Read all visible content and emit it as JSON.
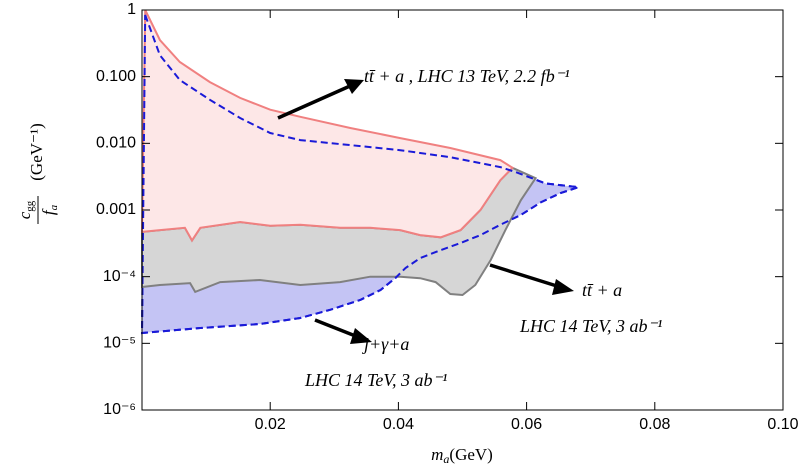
{
  "chart_data": {
    "type": "area",
    "x_label": {
      "symbol": "m",
      "subscript": "a",
      "unit": "(GeV)"
    },
    "y_label": {
      "numerator": "c",
      "numerator_sub": "gg",
      "denominator": "f",
      "denominator_sub": "a",
      "unit": "(GeV⁻¹)"
    },
    "xlim": [
      0,
      0.1
    ],
    "xticks": [
      0.02,
      0.04,
      0.06,
      0.08,
      {
        "value": 0.1,
        "label": "0.10"
      }
    ],
    "ylim": [
      1e-06,
      1
    ],
    "log_y": true,
    "yticks": [
      1,
      {
        "value": 0.1,
        "label": "0.100"
      },
      {
        "value": 0.01,
        "label": "0.010"
      },
      0.001,
      {
        "value": 0.0001,
        "label": "10⁻⁴"
      },
      {
        "value": 1e-05,
        "label": "10⁻⁵"
      },
      {
        "value": 1e-06,
        "label": "10⁻⁶"
      }
    ],
    "series": [
      {
        "color": "#c4c4f4",
        "stroke": "#1a1ad8",
        "dashed": true,
        "x": [
          0.0005,
          0.0028,
          0.0059,
          0.0106,
          0.0153,
          0.02,
          0.0247,
          0.0325,
          0.0403,
          0.0481,
          0.0559,
          0.0583,
          0.063,
          0.0681,
          0.0653,
          0.0622,
          0.0591,
          0.0559,
          0.0528,
          0.0497,
          0.0466,
          0.0434,
          0.0411,
          0.0395,
          0.0372,
          0.0341,
          0.0294,
          0.0247,
          0.0184,
          0.0091,
          0
        ],
        "y": [
          0.84,
          0.21,
          0.089,
          0.045,
          0.024,
          0.0143,
          0.0112,
          0.0094,
          0.0079,
          0.0062,
          0.0044,
          0.0037,
          0.0025,
          0.0022,
          0.0018,
          0.0013,
          0.00084,
          0.0006,
          0.00042,
          0.00032,
          0.00025,
          0.00019,
          0.000135,
          9.5e-05,
          6.3e-05,
          4.5e-05,
          3.2e-05,
          2.4e-05,
          1.95e-05,
          1.7e-05,
          1.43e-05
        ]
      },
      {
        "color": "#d6d6d6",
        "stroke": "#808080",
        "dashed": false,
        "x": [
          0,
          0.0028,
          0.0067,
          0.0078,
          0.0091,
          0.0153,
          0.02,
          0.0247,
          0.0309,
          0.0356,
          0.0403,
          0.0434,
          0.0466,
          0.0497,
          0.0528,
          0.0559,
          0.0578,
          0.0614,
          0.0591,
          0.0567,
          0.0544,
          0.052,
          0.05,
          0.0481,
          0.0458,
          0.0434,
          0.0403,
          0.0356,
          0.0309,
          0.0247,
          0.0184,
          0.0122,
          0.0083,
          0.0075,
          0.0028,
          0
        ],
        "y": [
          0.00047,
          0.0005,
          0.00054,
          0.00035,
          0.00054,
          0.00066,
          0.00058,
          0.0006,
          0.00054,
          0.00054,
          0.0005,
          0.00042,
          0.00039,
          0.0005,
          0.001,
          0.0028,
          0.0043,
          0.003,
          0.0014,
          0.0005,
          0.000178,
          7.5e-05,
          5.3e-05,
          5.5e-05,
          8.3e-05,
          9.5e-05,
          0.0001,
          0.0001,
          8.3e-05,
          7.5e-05,
          8.9e-05,
          8.3e-05,
          5.9e-05,
          8e-05,
          7.5e-05,
          7e-05
        ]
      },
      {
        "color": "#fde7e7",
        "stroke": "#f08080",
        "dashed": false,
        "x": [
          0.0005,
          0.0028,
          0.0059,
          0.0106,
          0.0153,
          0.02,
          0.0247,
          0.0325,
          0.0403,
          0.0481,
          0.0559,
          0.0578,
          0.0559,
          0.0528,
          0.0497,
          0.0466,
          0.0434,
          0.0403,
          0.0356,
          0.0309,
          0.0247,
          0.02,
          0.0153,
          0.0091,
          0.0078,
          0.0067,
          0.0028,
          0
        ],
        "y": [
          1,
          0.355,
          0.166,
          0.083,
          0.048,
          0.032,
          0.025,
          0.017,
          0.012,
          0.0085,
          0.0056,
          0.0043,
          0.0028,
          0.001,
          0.0005,
          0.00039,
          0.00042,
          0.0005,
          0.00054,
          0.00054,
          0.0006,
          0.00058,
          0.00066,
          0.00054,
          0.00035,
          0.00054,
          0.0005,
          0.00047
        ]
      }
    ],
    "annotations": [
      "tt̄ + a   , LHC 13 TeV, 2.2  fb⁻¹",
      "tt̄ + a",
      "LHC 14 TeV, 3  ab⁻¹",
      "j+γ+a",
      "LHC 14 TeV, 3  ab⁻¹"
    ]
  }
}
